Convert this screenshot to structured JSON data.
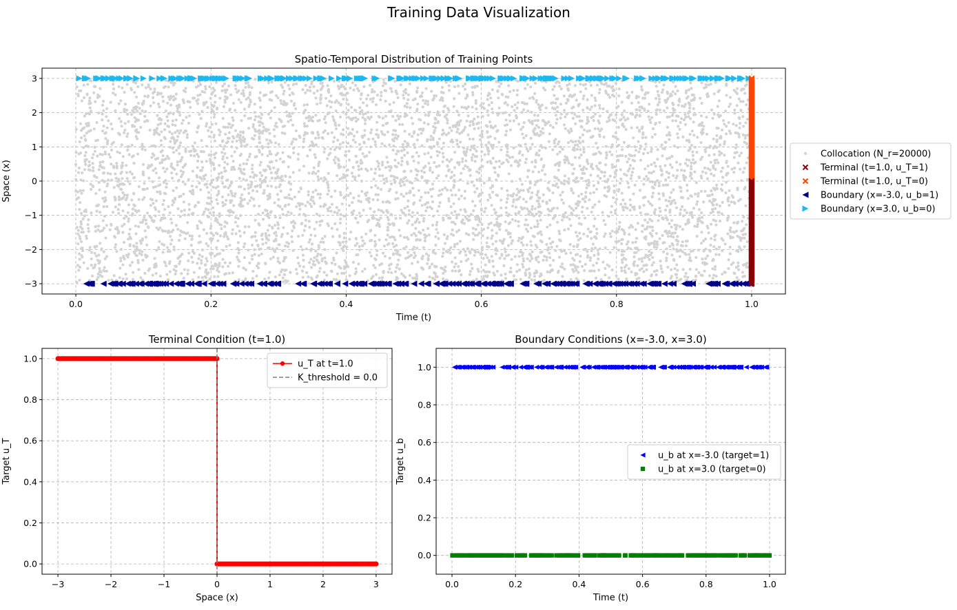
{
  "figure": {
    "suptitle": "Training Data Visualization"
  },
  "chart_data": [
    {
      "type": "scatter",
      "title": "Spatio-Temporal Distribution of Training Points",
      "xlabel": "Time (t)",
      "ylabel": "Space (x)",
      "xlim": [
        -0.05,
        1.05
      ],
      "ylim": [
        -3.3,
        3.3
      ],
      "xticks": [
        0.0,
        0.2,
        0.4,
        0.6,
        0.8,
        1.0
      ],
      "xtick_labels": [
        "0.0",
        "0.2",
        "0.4",
        "0.6",
        "0.8",
        "1.0"
      ],
      "yticks": [
        -3,
        -2,
        -1,
        0,
        1,
        2,
        3
      ],
      "ytick_labels": [
        "−3",
        "−2",
        "−1",
        "0",
        "1",
        "2",
        "3"
      ],
      "grid": true,
      "legend_position": "outside-right",
      "series": [
        {
          "name": "Collocation (N_r=20000)",
          "marker": "dot",
          "color": "#d3d3d3",
          "points": "uniform random t in [0,1], x in [-3,3], N=20000 (sampled subset drawn)"
        },
        {
          "name": "Terminal (t=1.0, u_T=1)",
          "marker": "x",
          "color": "#8b0000",
          "t": 1.0,
          "x_range": [
            -3.0,
            0.0
          ]
        },
        {
          "name": "Terminal (t=1.0, u_T=0)",
          "marker": "x",
          "color": "#ff4500",
          "t": 1.0,
          "x_range": [
            0.0,
            3.0
          ]
        },
        {
          "name": "Boundary (x=-3.0, u_b=1)",
          "marker": "triangle-left",
          "color": "#00008b",
          "x": -3.0,
          "t_range": [
            0.0,
            1.0
          ]
        },
        {
          "name": "Boundary (x=3.0, u_b=0)",
          "marker": "triangle-right",
          "color": "#1eb8f0",
          "x": 3.0,
          "t_range": [
            0.0,
            1.0
          ]
        }
      ]
    },
    {
      "type": "line",
      "title": "Terminal Condition (t=1.0)",
      "xlabel": "Space (x)",
      "ylabel": "Target u_T",
      "xlim": [
        -3.3,
        3.3
      ],
      "ylim": [
        -0.05,
        1.05
      ],
      "xticks": [
        -3,
        -2,
        -1,
        0,
        1,
        2,
        3
      ],
      "xtick_labels": [
        "−3",
        "−2",
        "−1",
        "0",
        "1",
        "2",
        "3"
      ],
      "yticks": [
        0.0,
        0.2,
        0.4,
        0.6,
        0.8,
        1.0
      ],
      "ytick_labels": [
        "0.0",
        "0.2",
        "0.4",
        "0.6",
        "0.8",
        "1.0"
      ],
      "grid": true,
      "legend_position": "upper-right",
      "series": [
        {
          "name": "u_T at t=1.0",
          "color": "#ff0000",
          "marker": "circle",
          "x": [
            -3.0,
            0.0,
            0.0,
            3.0
          ],
          "y": [
            1.0,
            1.0,
            0.0,
            0.0
          ]
        },
        {
          "name": "K_threshold = 0.0",
          "color": "#808080",
          "style": "dashed",
          "x": 0.0
        }
      ]
    },
    {
      "type": "scatter",
      "title": "Boundary Conditions (x=-3.0, x=3.0)",
      "xlabel": "Time (t)",
      "ylabel": "Target u_b",
      "xlim": [
        -0.05,
        1.05
      ],
      "ylim": [
        -0.1,
        1.1
      ],
      "xticks": [
        0.0,
        0.2,
        0.4,
        0.6,
        0.8,
        1.0
      ],
      "xtick_labels": [
        "0.0",
        "0.2",
        "0.4",
        "0.6",
        "0.8",
        "1.0"
      ],
      "yticks": [
        0.0,
        0.2,
        0.4,
        0.6,
        0.8,
        1.0
      ],
      "ytick_labels": [
        "0.0",
        "0.2",
        "0.4",
        "0.6",
        "0.8",
        "1.0"
      ],
      "grid": true,
      "legend_position": "center-right",
      "series": [
        {
          "name": "u_b at x=-3.0 (target=1)",
          "marker": "triangle-left",
          "color": "#0000ff",
          "y": 1.0,
          "t_range": [
            0.0,
            1.0
          ]
        },
        {
          "name": "u_b at x=3.0 (target=0)",
          "marker": "square",
          "color": "#008000",
          "y": 0.0,
          "t_range": [
            0.0,
            1.0
          ]
        }
      ]
    }
  ]
}
